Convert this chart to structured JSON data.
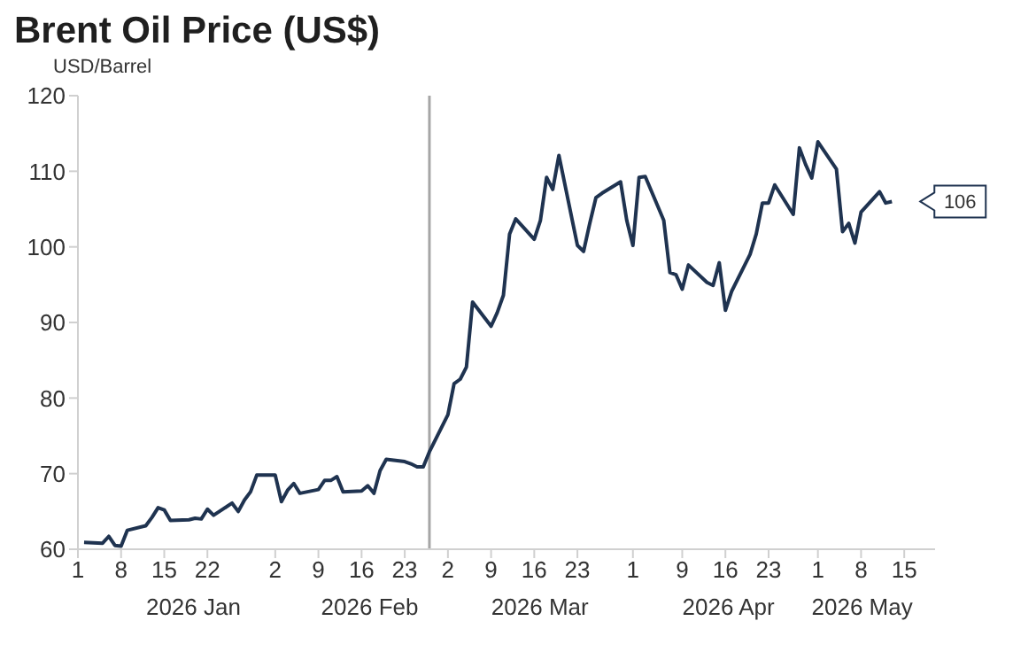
{
  "chart_data": {
    "type": "line",
    "title": "Brent Oil Price (US$)",
    "ylabel": "USD/Barrel",
    "x": [
      "2026-01-02",
      "2026-01-05",
      "2026-01-06",
      "2026-01-07",
      "2026-01-08",
      "2026-01-09",
      "2026-01-12",
      "2026-01-13",
      "2026-01-14",
      "2026-01-15",
      "2026-01-16",
      "2026-01-19",
      "2026-01-20",
      "2026-01-21",
      "2026-01-22",
      "2026-01-23",
      "2026-01-26",
      "2026-01-27",
      "2026-01-28",
      "2026-01-29",
      "2026-01-30",
      "2026-02-02",
      "2026-02-03",
      "2026-02-04",
      "2026-02-05",
      "2026-02-06",
      "2026-02-09",
      "2026-02-10",
      "2026-02-11",
      "2026-02-12",
      "2026-02-13",
      "2026-02-16",
      "2026-02-17",
      "2026-02-18",
      "2026-02-19",
      "2026-02-20",
      "2026-02-23",
      "2026-02-24",
      "2026-02-25",
      "2026-02-26",
      "2026-02-27",
      "2026-03-02",
      "2026-03-03",
      "2026-03-04",
      "2026-03-05",
      "2026-03-06",
      "2026-03-09",
      "2026-03-10",
      "2026-03-11",
      "2026-03-12",
      "2026-03-13",
      "2026-03-16",
      "2026-03-17",
      "2026-03-18",
      "2026-03-19",
      "2026-03-20",
      "2026-03-23",
      "2026-03-24",
      "2026-03-25",
      "2026-03-26",
      "2026-03-27",
      "2026-03-30",
      "2026-03-31",
      "2026-04-01",
      "2026-04-02",
      "2026-04-03",
      "2026-04-06",
      "2026-04-07",
      "2026-04-08",
      "2026-04-09",
      "2026-04-10",
      "2026-04-13",
      "2026-04-14",
      "2026-04-15",
      "2026-04-16",
      "2026-04-17",
      "2026-04-20",
      "2026-04-21",
      "2026-04-22",
      "2026-04-23",
      "2026-04-24",
      "2026-04-27",
      "2026-04-28",
      "2026-04-29",
      "2026-04-30",
      "2026-05-01",
      "2026-05-04",
      "2026-05-05",
      "2026-05-06",
      "2026-05-07",
      "2026-05-08",
      "2026-05-11",
      "2026-05-12",
      "2026-05-13"
    ],
    "series": [
      {
        "color": "#1f3350",
        "values": [
          60.9,
          60.8,
          61.7,
          60.5,
          60.4,
          62.5,
          63.1,
          64.2,
          65.5,
          65.2,
          63.8,
          63.9,
          64.1,
          64.0,
          65.3,
          64.5,
          66.1,
          65.0,
          66.5,
          67.6,
          69.8,
          69.8,
          66.3,
          67.8,
          68.7,
          67.4,
          67.9,
          69.1,
          69.1,
          69.6,
          67.6,
          67.7,
          68.4,
          67.4,
          70.4,
          71.9,
          71.6,
          71.3,
          70.9,
          70.9,
          72.9,
          77.8,
          81.9,
          82.5,
          84.1,
          92.7,
          89.5,
          91.3,
          93.6,
          101.7,
          103.7,
          101.0,
          103.5,
          109.2,
          107.6,
          112.1,
          100.2,
          99.4,
          103.1,
          106.5,
          107.1,
          108.6,
          103.5,
          100.2,
          109.2,
          109.3,
          103.5,
          96.6,
          96.3,
          94.4,
          97.6,
          95.3,
          94.9,
          97.9,
          91.6,
          94.1,
          99.0,
          101.7,
          105.8,
          105.8,
          108.2,
          104.3,
          113.1,
          110.9,
          109.1,
          113.9,
          110.3,
          102.0,
          103.1,
          100.5,
          104.6,
          107.3,
          105.8,
          106
        ]
      }
    ],
    "xlim": [
      "2026-01-01",
      "2026-05-20"
    ],
    "xticks": [
      {
        "value": "2026-01-01",
        "label": "1"
      },
      {
        "value": "2026-01-08",
        "label": "8"
      },
      {
        "value": "2026-01-15",
        "label": "15"
      },
      {
        "value": "2026-01-22",
        "label": "22"
      },
      {
        "value": "2026-02-02",
        "label": "2"
      },
      {
        "value": "2026-02-09",
        "label": "9"
      },
      {
        "value": "2026-02-16",
        "label": "16"
      },
      {
        "value": "2026-02-23",
        "label": "23"
      },
      {
        "value": "2026-03-02",
        "label": "2"
      },
      {
        "value": "2026-03-09",
        "label": "9"
      },
      {
        "value": "2026-03-16",
        "label": "16"
      },
      {
        "value": "2026-03-23",
        "label": "23"
      },
      {
        "value": "2026-04-01",
        "label": "1"
      },
      {
        "value": "2026-04-09",
        "label": "9"
      },
      {
        "value": "2026-04-16",
        "label": "16"
      },
      {
        "value": "2026-04-23",
        "label": "23"
      },
      {
        "value": "2026-05-01",
        "label": "1"
      },
      {
        "value": "2026-05-08",
        "label": "8"
      },
      {
        "value": "2026-05-15",
        "label": "15"
      }
    ],
    "x2lim": [
      "2025-12-29",
      "2026-05-19"
    ],
    "x2ticks": [
      {
        "value": "2026-01-17",
        "label": "2026 Jan"
      },
      {
        "value": "2026-02-15",
        "label": "2026 Feb"
      },
      {
        "value": "2026-03-15",
        "label": "2026 Mar"
      },
      {
        "value": "2026-04-15",
        "label": "2026 Apr"
      },
      {
        "value": "2026-05-07",
        "label": "2026 May"
      }
    ],
    "ylim": [
      60,
      120
    ],
    "yticks": [
      60,
      70,
      80,
      90,
      100,
      110,
      120
    ],
    "ref_lines": [
      {
        "axis": "x",
        "value": "2026-02-27",
        "color": "#a6a6a6"
      }
    ],
    "annotations": [
      {
        "text": "106",
        "x": "2026-05-13",
        "y": 106
      }
    ],
    "grid": false,
    "marker": "none",
    "line_style": "solid"
  }
}
